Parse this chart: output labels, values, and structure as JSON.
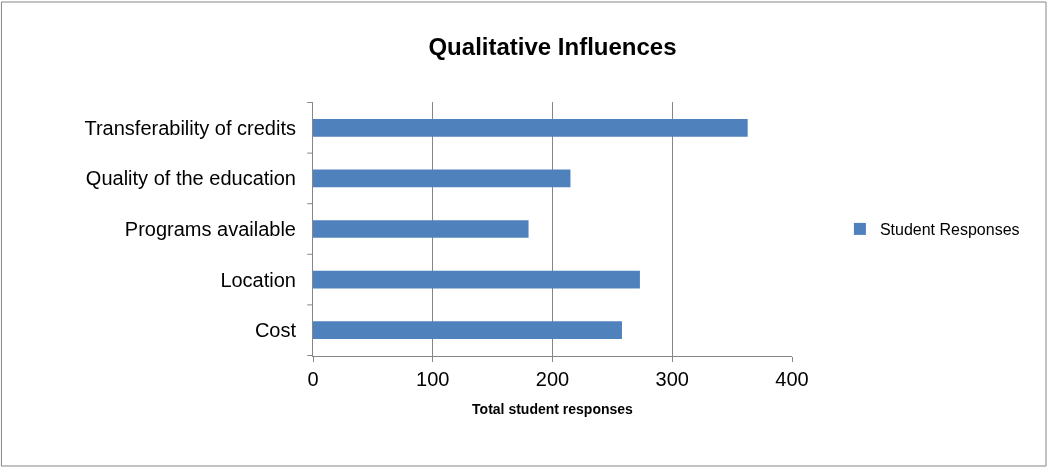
{
  "chart_data": {
    "type": "bar",
    "orientation": "horizontal",
    "title": "Qualitative Influences",
    "xlabel": "Total student responses",
    "categories": [
      "Transferability of credits",
      "Quality of the education",
      "Programs available",
      "Location",
      "Cost"
    ],
    "series": [
      {
        "name": "Student Responses",
        "color": "#4f81bd",
        "values": [
          363,
          215,
          180,
          273,
          258
        ]
      }
    ],
    "xlim": [
      0,
      400
    ],
    "xticks": [
      0,
      100,
      200,
      300,
      400
    ],
    "grid": "x",
    "legend": "right"
  }
}
